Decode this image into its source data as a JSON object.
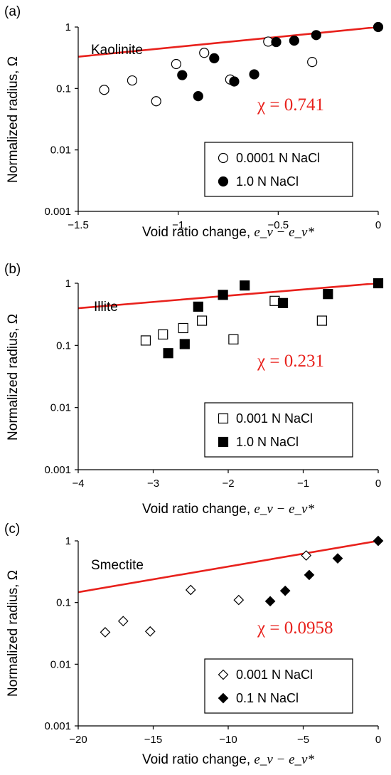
{
  "colors": {
    "fit_line": "#e8211c",
    "marker": "#000000",
    "axis": "#000000"
  },
  "chart_data": [
    {
      "type": "scatter",
      "panel_label": "(a)",
      "mineral": "Kaolinite",
      "xlabel_text": "Void ratio change, ",
      "xlabel_math": "e_v − e_v*",
      "ylabel": "Normalized radius, Ω",
      "xlim": [
        -1.5,
        0
      ],
      "ylim": [
        0.001,
        1
      ],
      "yscale": "log",
      "x_ticks": [
        -1.5,
        -1,
        -0.5,
        0
      ],
      "x_tick_labels": [
        "−1.5",
        "−1",
        "−0.5",
        "0"
      ],
      "y_ticks": [
        0.001,
        0.01,
        0.1,
        1
      ],
      "y_tick_labels": [
        "0.001",
        "0.01",
        "0.1",
        "1"
      ],
      "fit_text": "χ = 0.741",
      "fit": {
        "chi": 0.741,
        "x_range": [
          -1.5,
          0
        ]
      },
      "legend_position": "lower-right",
      "series": [
        {
          "name": "0.0001 N NaCl",
          "marker": "circle",
          "filled": false,
          "points": [
            [
              -1.37,
              0.095
            ],
            [
              -1.23,
              0.135
            ],
            [
              -1.11,
              0.062
            ],
            [
              -1.01,
              0.25
            ],
            [
              -0.87,
              0.38
            ],
            [
              -0.74,
              0.14
            ],
            [
              -0.55,
              0.58
            ],
            [
              -0.33,
              0.27
            ]
          ]
        },
        {
          "name": "1.0 N NaCl",
          "marker": "circle",
          "filled": true,
          "points": [
            [
              -0.98,
              0.165
            ],
            [
              -0.9,
              0.075
            ],
            [
              -0.82,
              0.31
            ],
            [
              -0.72,
              0.13
            ],
            [
              -0.62,
              0.17
            ],
            [
              -0.51,
              0.57
            ],
            [
              -0.42,
              0.6
            ],
            [
              -0.31,
              0.74
            ],
            [
              0,
              1
            ]
          ]
        }
      ]
    },
    {
      "type": "scatter",
      "panel_label": "(b)",
      "mineral": "Illite",
      "xlabel_text": "Void ratio change, ",
      "xlabel_math": "e_v − e_v*",
      "ylabel": "Normalized radius, Ω",
      "xlim": [
        -4,
        0
      ],
      "ylim": [
        0.001,
        1
      ],
      "yscale": "log",
      "x_ticks": [
        -4,
        -3,
        -2,
        -1,
        0
      ],
      "x_tick_labels": [
        "−4",
        "−3",
        "−2",
        "−1",
        "0"
      ],
      "y_ticks": [
        0.001,
        0.01,
        0.1,
        1
      ],
      "y_tick_labels": [
        "0.001",
        "0.01",
        "0.1",
        "1"
      ],
      "fit_text": "χ = 0.231",
      "fit": {
        "chi": 0.231,
        "x_range": [
          -4,
          0
        ]
      },
      "legend_position": "lower-right",
      "series": [
        {
          "name": "0.001 N NaCl",
          "marker": "square",
          "filled": false,
          "points": [
            [
              -3.1,
              0.12
            ],
            [
              -2.87,
              0.15
            ],
            [
              -2.6,
              0.19
            ],
            [
              -2.35,
              0.25
            ],
            [
              -1.93,
              0.125
            ],
            [
              -1.38,
              0.52
            ],
            [
              -0.75,
              0.25
            ]
          ]
        },
        {
          "name": "1.0 N NaCl",
          "marker": "square",
          "filled": true,
          "points": [
            [
              -2.8,
              0.075
            ],
            [
              -2.58,
              0.105
            ],
            [
              -2.4,
              0.42
            ],
            [
              -2.07,
              0.65
            ],
            [
              -1.78,
              0.92
            ],
            [
              -1.27,
              0.48
            ],
            [
              -0.67,
              0.67
            ],
            [
              0,
              1
            ]
          ]
        }
      ]
    },
    {
      "type": "scatter",
      "panel_label": "(c)",
      "mineral": "Smectite",
      "xlabel_text": "Void ratio change, ",
      "xlabel_math": "e_v − e_v*",
      "ylabel": "Normalized radius, Ω",
      "xlim": [
        -20,
        0
      ],
      "ylim": [
        0.001,
        1
      ],
      "yscale": "log",
      "x_ticks": [
        -20,
        -15,
        -10,
        -5,
        0
      ],
      "x_tick_labels": [
        "−20",
        "−15",
        "−10",
        "−5",
        "0"
      ],
      "y_ticks": [
        0.001,
        0.01,
        0.1,
        1
      ],
      "y_tick_labels": [
        "0.001",
        "0.01",
        "0.1",
        "1"
      ],
      "fit_text": "χ = 0.0958",
      "fit": {
        "chi": 0.0958,
        "x_range": [
          -20,
          0
        ]
      },
      "legend_position": "lower-right",
      "series": [
        {
          "name": "0.001 N NaCl",
          "marker": "diamond",
          "filled": false,
          "points": [
            [
              -18.2,
              0.033
            ],
            [
              -17.0,
              0.05
            ],
            [
              -15.2,
              0.034
            ],
            [
              -12.5,
              0.16
            ],
            [
              -9.3,
              0.11
            ],
            [
              -4.8,
              0.58
            ]
          ]
        },
        {
          "name": "0.1 N NaCl",
          "marker": "diamond",
          "filled": true,
          "points": [
            [
              -7.2,
              0.105
            ],
            [
              -6.2,
              0.155
            ],
            [
              -4.6,
              0.28
            ],
            [
              -2.7,
              0.52
            ],
            [
              0,
              1
            ]
          ]
        }
      ]
    }
  ]
}
